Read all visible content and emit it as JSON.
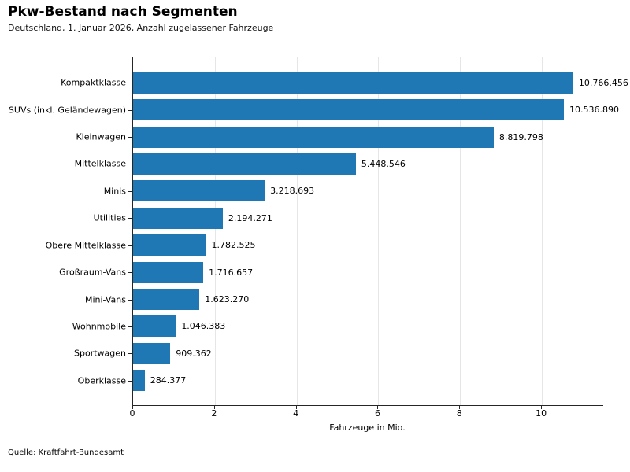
{
  "header": {
    "title": "Pkw-Bestand nach Segmenten",
    "subtitle": "Deutschland, 1. Januar 2026, Anzahl zugelassener Fahrzeuge"
  },
  "chart_data": {
    "type": "bar",
    "orientation": "horizontal",
    "title": "Pkw-Bestand nach Segmenten",
    "subtitle": "Deutschland, 1. Januar 2026, Anzahl zugelassener Fahrzeuge",
    "xlabel": "Fahrzeuge in Mio.",
    "ylabel": "",
    "categories": [
      "Kompaktklasse",
      "SUVs (inkl. Geländewagen)",
      "Kleinwagen",
      "Mittelklasse",
      "Minis",
      "Utilities",
      "Obere Mittelklasse",
      "Großraum-Vans",
      "Mini-Vans",
      "Wohnmobile",
      "Sportwagen",
      "Oberklasse"
    ],
    "values": [
      10766456,
      10536890,
      8819798,
      5448546,
      3218693,
      2194271,
      1782525,
      1716657,
      1623270,
      1046383,
      909362,
      284377
    ],
    "value_labels": [
      "10.766.456",
      "10.536.890",
      "8.819.798",
      "5.448.546",
      "3.218.693",
      "2.194.271",
      "1.782.525",
      "1.716.657",
      "1.623.270",
      "1.046.383",
      "909.362",
      "284.377"
    ],
    "values_unit": "Fahrzeuge",
    "x_ticks": [
      0,
      2,
      4,
      6,
      8,
      10
    ],
    "xlim": [
      0,
      11.5
    ],
    "grid": true,
    "legend_position": "none",
    "bar_color": "#1f77b4",
    "grid_color": "#e6e6e6",
    "axis_color": "#262626"
  },
  "footer": {
    "source": "Quelle: Kraftfahrt-Bundesamt"
  }
}
